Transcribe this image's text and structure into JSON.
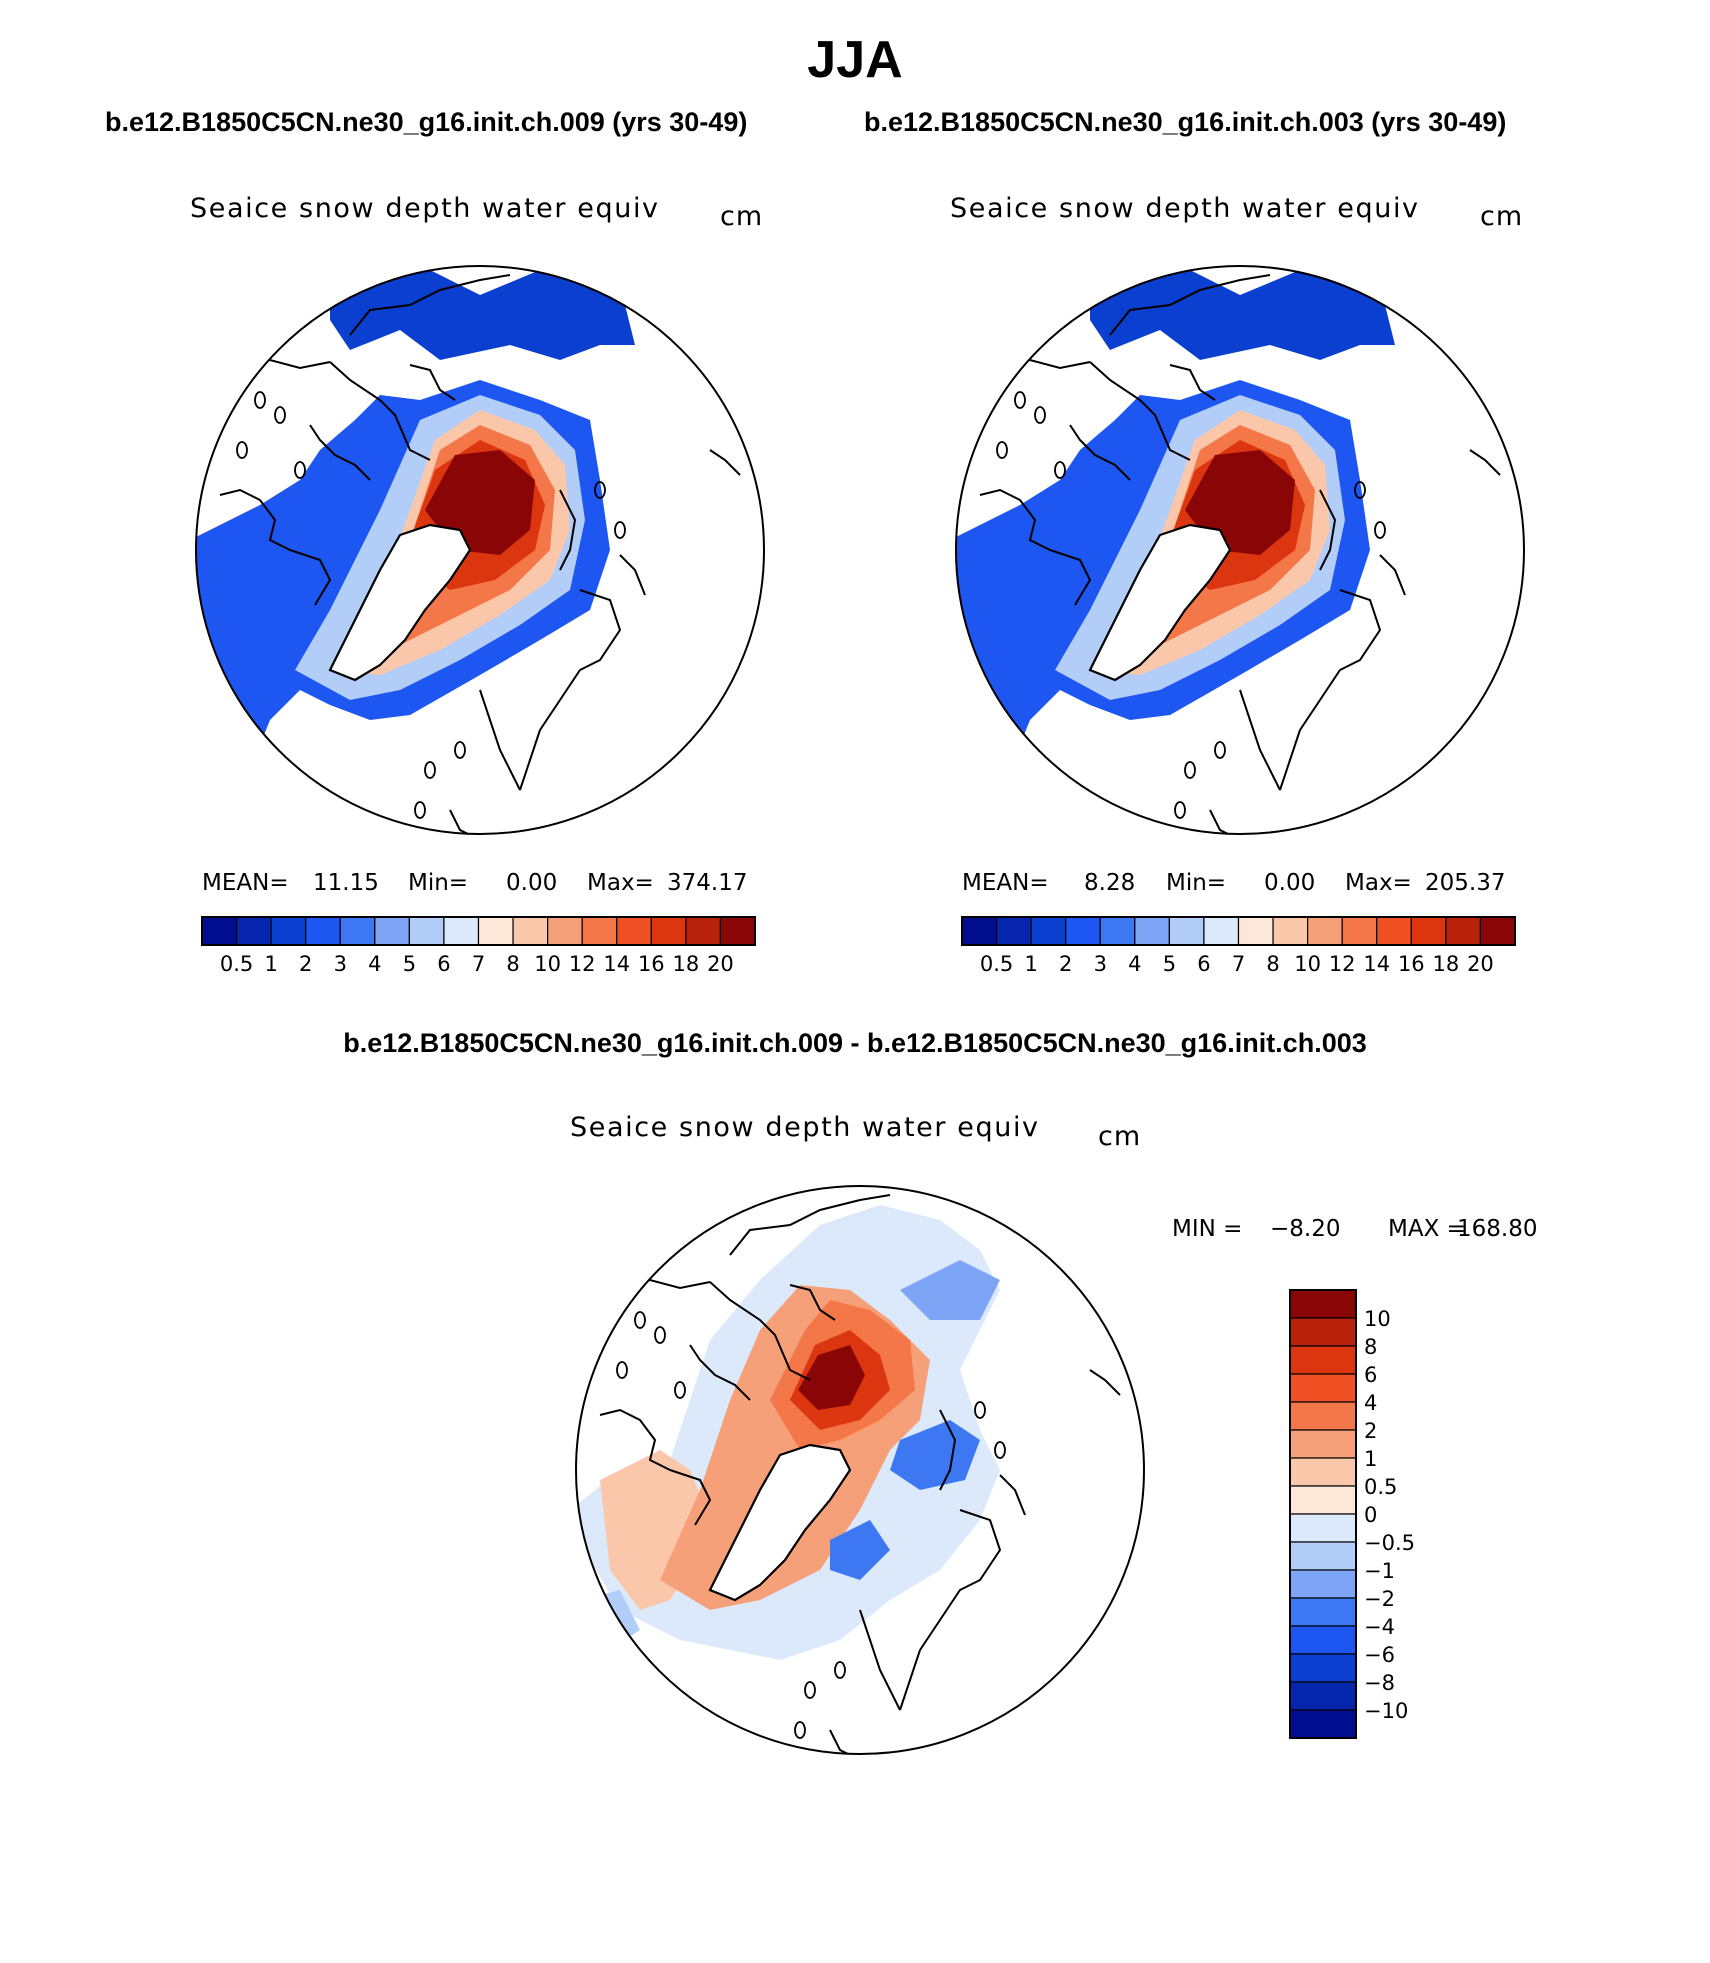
{
  "figure": {
    "title": "JJA",
    "left_case": "b.e12.B1850C5CN.ne30_g16.init.ch.009 (yrs 30-49)",
    "right_case": "b.e12.B1850C5CN.ne30_g16.init.ch.003 (yrs 30-49)",
    "diff_title": "b.e12.B1850C5CN.ne30_g16.init.ch.009 - b.e12.B1850C5CN.ne30_g16.init.ch.003"
  },
  "colors": {
    "seq": [
      "#000d8f",
      "#0526ac",
      "#0b3fd0",
      "#1d56f0",
      "#3d78f2",
      "#7ea4f5",
      "#b3cdf9",
      "#dbe9fb",
      "#fde7d8",
      "#fbc7ab",
      "#f6a07a",
      "#f37749",
      "#f05124",
      "#dc3610",
      "#b8210a",
      "#8a0505"
    ],
    "div": [
      "#8a0505",
      "#b8210a",
      "#dc3610",
      "#f05124",
      "#f37749",
      "#f6a07a",
      "#fbc7ab",
      "#fde7d8",
      "#dbe9fb",
      "#b3cdf9",
      "#7ea4f5",
      "#3d78f2",
      "#1d56f0",
      "#0b3fd0",
      "#0526ac",
      "#000d8f"
    ]
  },
  "chart_data": [
    {
      "type": "heatmap",
      "projection": "north-polar-stereographic",
      "title": "Seaice snow depth water equiv",
      "units": "cm",
      "stats": {
        "mean_label": "MEAN=",
        "mean": "11.15",
        "min_label": "Min=",
        "min": "0.00",
        "max_label": "Max=",
        "max": "374.17"
      },
      "levels": [
        "0.5",
        "1",
        "2",
        "3",
        "4",
        "5",
        "6",
        "7",
        "8",
        "10",
        "12",
        "14",
        "16",
        "18",
        "20"
      ]
    },
    {
      "type": "heatmap",
      "projection": "north-polar-stereographic",
      "title": "Seaice snow depth water equiv",
      "units": "cm",
      "stats": {
        "mean_label": "MEAN=",
        "mean": "8.28",
        "min_label": "Min=",
        "min": "0.00",
        "max_label": "Max=",
        "max": "205.37"
      },
      "levels": [
        "0.5",
        "1",
        "2",
        "3",
        "4",
        "5",
        "6",
        "7",
        "8",
        "10",
        "12",
        "14",
        "16",
        "18",
        "20"
      ]
    },
    {
      "type": "heatmap",
      "projection": "north-polar-stereographic",
      "title": "Seaice snow depth water equiv",
      "units": "cm",
      "stats": {
        "min_label": "MIN =",
        "min": "−8.20",
        "max_label": "MAX =",
        "max": "168.80"
      },
      "levels": [
        "10",
        "8",
        "6",
        "4",
        "2",
        "1",
        "0.5",
        "0",
        "−0.5",
        "−1",
        "−2",
        "−4",
        "−6",
        "−8",
        "−10"
      ]
    }
  ]
}
